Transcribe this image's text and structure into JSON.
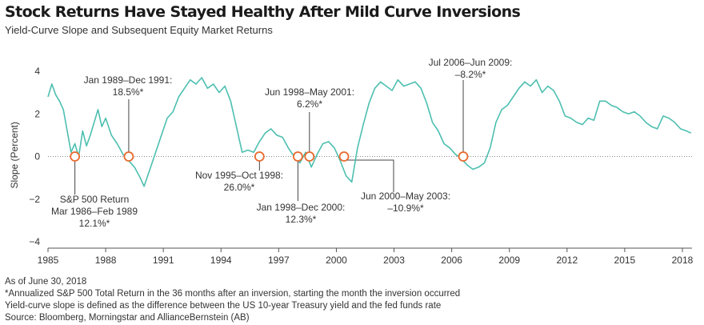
{
  "header": {
    "title": "Stock Returns Have Stayed Healthy After Mild Curve Inversions",
    "subtitle": "Yield-Curve Slope and Subsequent Equity Market Returns"
  },
  "footnotes": [
    "As of June 30, 2018",
    "*Annualized S&P 500 Total Return in the 36 months after an inversion, starting the month the inversion occurred",
    "Yield-curve slope is defined as the difference between the US 10-year Treasury yield and the fed funds rate",
    "Source: Bloomberg, Morningstar and AllianceBernstein (AB)"
  ],
  "colors": {
    "line": "#4dbfb0",
    "marker": "#e8692c",
    "axis": "#555555",
    "annotation_line": "#444444"
  },
  "chart_data": {
    "type": "line",
    "title": "Stock Returns Have Stayed Healthy After Mild Curve Inversions",
    "subtitle": "Yield-Curve Slope and Subsequent Equity Market Returns",
    "ylabel": "Slope (Percent)",
    "xlabel": "",
    "xlim": [
      1985,
      2018.5
    ],
    "ylim": [
      -4,
      4
    ],
    "xticks": [
      1985,
      1988,
      1991,
      1994,
      1997,
      2000,
      2003,
      2006,
      2009,
      2012,
      2015,
      2018
    ],
    "yticks": [
      -4,
      -2,
      0,
      2,
      4
    ],
    "grid": false,
    "series": [
      {
        "x": [
          1985.0,
          1985.2,
          1985.4,
          1985.6,
          1985.8,
          1986.0,
          1986.2,
          1986.4,
          1986.6,
          1986.8,
          1987.0,
          1987.2,
          1987.4,
          1987.6,
          1987.8,
          1988.0,
          1988.3,
          1988.6,
          1988.9,
          1989.2,
          1989.5,
          1989.8,
          1990.0,
          1990.3,
          1990.6,
          1990.9,
          1991.2,
          1991.5,
          1991.8,
          1992.1,
          1992.4,
          1992.7,
          1993.0,
          1993.3,
          1993.6,
          1993.9,
          1994.2,
          1994.5,
          1994.8,
          1995.1,
          1995.4,
          1995.7,
          1996.0,
          1996.3,
          1996.6,
          1996.9,
          1997.2,
          1997.5,
          1997.8,
          1998.1,
          1998.4,
          1998.7,
          1999.0,
          1999.3,
          1999.6,
          1999.9,
          2000.2,
          2000.5,
          2000.8,
          2001.1,
          2001.4,
          2001.7,
          2002.0,
          2002.3,
          2002.6,
          2002.9,
          2003.2,
          2003.5,
          2003.8,
          2004.1,
          2004.4,
          2004.7,
          2005.0,
          2005.3,
          2005.6,
          2005.9,
          2006.2,
          2006.5,
          2006.8,
          2007.1,
          2007.4,
          2007.7,
          2008.0,
          2008.3,
          2008.6,
          2008.9,
          2009.2,
          2009.5,
          2009.8,
          2010.1,
          2010.4,
          2010.7,
          2011.0,
          2011.3,
          2011.6,
          2011.9,
          2012.2,
          2012.5,
          2012.8,
          2013.1,
          2013.4,
          2013.7,
          2014.0,
          2014.3,
          2014.6,
          2014.9,
          2015.2,
          2015.5,
          2015.8,
          2016.1,
          2016.4,
          2016.7,
          2017.0,
          2017.3,
          2017.6,
          2017.9,
          2018.2,
          2018.45
        ],
        "y": [
          2.8,
          3.4,
          2.9,
          2.6,
          2.2,
          1.2,
          0.2,
          0.6,
          0.0,
          1.2,
          0.5,
          1.0,
          1.6,
          2.2,
          1.4,
          1.8,
          1.0,
          0.6,
          0.1,
          -0.2,
          -0.5,
          -1.0,
          -1.4,
          -0.6,
          0.2,
          1.0,
          1.8,
          2.1,
          2.8,
          3.2,
          3.6,
          3.4,
          3.7,
          3.2,
          3.4,
          3.0,
          3.3,
          2.6,
          1.4,
          0.2,
          0.3,
          0.2,
          0.7,
          1.1,
          1.3,
          1.0,
          0.9,
          0.4,
          0.0,
          -0.3,
          0.2,
          -0.5,
          0.1,
          0.6,
          0.7,
          0.4,
          -0.2,
          -0.9,
          -1.2,
          0.4,
          1.5,
          2.5,
          3.2,
          3.5,
          3.3,
          3.1,
          3.6,
          3.3,
          3.4,
          3.5,
          3.2,
          2.5,
          1.6,
          1.2,
          0.6,
          0.4,
          0.1,
          -0.1,
          -0.4,
          -0.6,
          -0.5,
          -0.3,
          0.4,
          1.6,
          2.2,
          2.4,
          2.8,
          3.2,
          3.5,
          3.3,
          3.6,
          3.0,
          3.3,
          3.1,
          2.6,
          1.9,
          1.8,
          1.6,
          1.5,
          1.8,
          1.7,
          2.6,
          2.6,
          2.4,
          2.3,
          2.1,
          2.0,
          2.1,
          1.9,
          1.6,
          1.4,
          1.3,
          1.9,
          1.8,
          1.6,
          1.3,
          1.2,
          1.1
        ]
      }
    ],
    "inversion_points": [
      {
        "x": 1986.4,
        "y": 0
      },
      {
        "x": 1989.2,
        "y": 0
      },
      {
        "x": 1996.0,
        "y": 0
      },
      {
        "x": 1998.0,
        "y": 0
      },
      {
        "x": 1998.6,
        "y": 0
      },
      {
        "x": 2000.4,
        "y": 0
      },
      {
        "x": 2006.6,
        "y": 0
      }
    ],
    "annotations": [
      {
        "lines": [
          "Jan 1989–Dec 1991:",
          "18.5%*"
        ]
      },
      {
        "lines": [
          "S&P 500 Return",
          "Mar 1986–Feb 1989",
          "12.1%*"
        ]
      },
      {
        "lines": [
          "Nov 1995–Oct 1998:",
          "26.0%*"
        ]
      },
      {
        "lines": [
          "Jun 1998–May 2001:",
          "6.2%*"
        ]
      },
      {
        "lines": [
          "Jan 1998–Dec 2000:",
          "12.3%*"
        ]
      },
      {
        "lines": [
          "Jun 2000–May 2003:",
          "–10.9%*"
        ]
      },
      {
        "lines": [
          "Jul 2006–Jun 2009:",
          "–8.2%*"
        ]
      }
    ]
  }
}
